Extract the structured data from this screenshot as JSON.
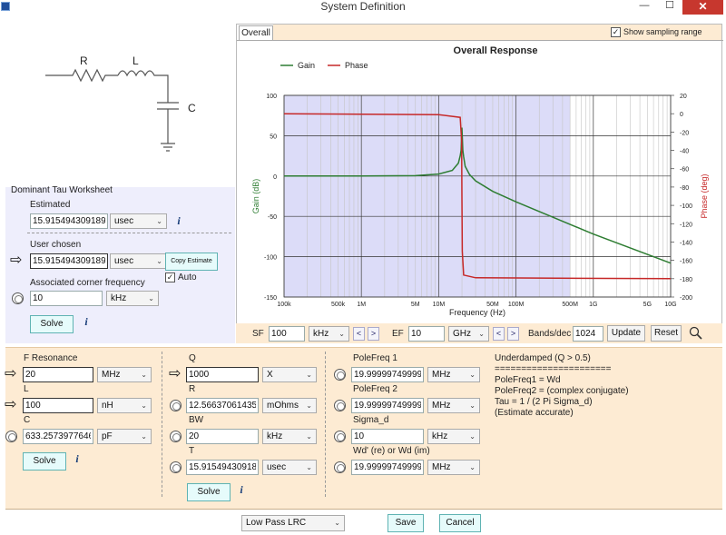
{
  "window": {
    "title": "System Definition",
    "minimize": "—",
    "maximize": "☐",
    "close": "✕"
  },
  "circuit": {
    "r": "R",
    "l": "L",
    "c": "C"
  },
  "tau": {
    "heading": "Dominant Tau Worksheet",
    "estimated_label": "Estimated",
    "estimated_value": "15.915494309189533",
    "estimated_unit": "usec",
    "user_label": "User chosen",
    "user_value": "15.915494309189533",
    "user_unit": "usec",
    "copy_btn": "Copy Estimate",
    "auto_label": "Auto",
    "auto_checked": true,
    "corner_label": "Associated corner frequency",
    "corner_value": "10",
    "corner_unit": "kHz",
    "solve_btn": "Solve"
  },
  "chart_tab": "Overall",
  "show_sampling": {
    "label": "Show sampling range",
    "checked": true
  },
  "chart_data": {
    "type": "line",
    "title": "Overall Response",
    "xlabel": "Frequency (Hz)",
    "ylabel": "Gain (dB)",
    "y2label": "Phase (deg)",
    "xscale": "log",
    "xlim": [
      100000,
      10000000000
    ],
    "ylim": [
      -150,
      100
    ],
    "y2lim": [
      -200,
      20
    ],
    "x_ticks": [
      "100k",
      "500k",
      "1M",
      "5M",
      "10M",
      "50M",
      "100M",
      "500M",
      "1G",
      "5G",
      "10G"
    ],
    "x_tick_values": [
      100000,
      500000,
      1000000,
      5000000,
      10000000,
      50000000,
      100000000,
      500000000,
      1000000000,
      5000000000,
      10000000000
    ],
    "y_ticks": [
      100,
      50,
      0,
      -50,
      -100,
      -150
    ],
    "y2_ticks": [
      20,
      0,
      -20,
      -40,
      -60,
      -80,
      -100,
      -120,
      -140,
      -160,
      -180,
      -200
    ],
    "legend": "top-left",
    "series": [
      {
        "name": "Gain",
        "color": "#2e7d32",
        "x": [
          100000,
          1000000,
          5000000,
          10000000,
          15000000,
          18000000,
          19000000,
          19500000,
          20000000,
          20500000,
          21000000,
          22000000,
          25000000,
          30000000,
          50000000,
          100000000,
          1000000000,
          10000000000
        ],
        "y": [
          0,
          0,
          0.5,
          2.5,
          7,
          16,
          25,
          32,
          60,
          32,
          24,
          12,
          2,
          -6,
          -19,
          -32,
          -72,
          -108
        ]
      },
      {
        "name": "Phase",
        "color": "#c62828",
        "axis": "y2",
        "x": [
          100000,
          10000000,
          19000000,
          19800000,
          20000000,
          20200000,
          21000000,
          30000000,
          10000000000
        ],
        "y": [
          0,
          -1,
          -4,
          -30,
          -90,
          -150,
          -176,
          -179,
          -180
        ]
      }
    ],
    "sampling_range": [
      100000,
      500000000
    ]
  },
  "chart_controls": {
    "sf_label": "SF",
    "sf_value": "100",
    "sf_unit": "kHz",
    "ef_label": "EF",
    "ef_value": "10",
    "ef_unit": "GHz",
    "bands_label": "Bands/dec",
    "bands_value": "1024",
    "update_btn": "Update",
    "reset_btn": "Reset",
    "prev": "<",
    "next": ">"
  },
  "lrc": {
    "fres_label": "F Resonance",
    "fres_value": "20",
    "fres_unit": "MHz",
    "l_label": "L",
    "l_value": "100",
    "l_unit": "nH",
    "c_label": "C",
    "c_value": "633.2573977646118",
    "c_unit": "pF",
    "solve_btn": "Solve"
  },
  "qpanel": {
    "q_label": "Q",
    "q_value": "1000",
    "q_unit": "X",
    "r_label": "R",
    "r_value": "12.566370614359172",
    "r_unit": "mOhms",
    "bw_label": "BW",
    "bw_value": "20",
    "bw_unit": "kHz",
    "t_label": "T",
    "t_value": "15.915494309189533",
    "t_unit": "usec",
    "solve_btn": "Solve"
  },
  "poles": {
    "p1_label": "PoleFreq 1",
    "p1_value": "19.999997499999844",
    "p1_unit": "MHz",
    "p2_label": "PoleFreq 2",
    "p2_value": "19.999997499999844",
    "p2_unit": "MHz",
    "sigma_label": "Sigma_d",
    "sigma_value": "10",
    "sigma_unit": "kHz",
    "wd_label": "Wd' (re) or Wd (im)",
    "wd_value": "19.999997499999844",
    "wd_unit": "MHz"
  },
  "notes": {
    "line1": "Underdamped (Q > 0.5)",
    "line2": "======================",
    "line3": "PoleFreq1 = Wd",
    "line4": "PoleFreq2 = (complex conjugate)",
    "line5": "Tau = 1 / (2 Pi Sigma_d)",
    "line6": "(Estimate accurate)"
  },
  "footer": {
    "filter_type": "Low Pass LRC",
    "save_btn": "Save",
    "cancel_btn": "Cancel"
  }
}
